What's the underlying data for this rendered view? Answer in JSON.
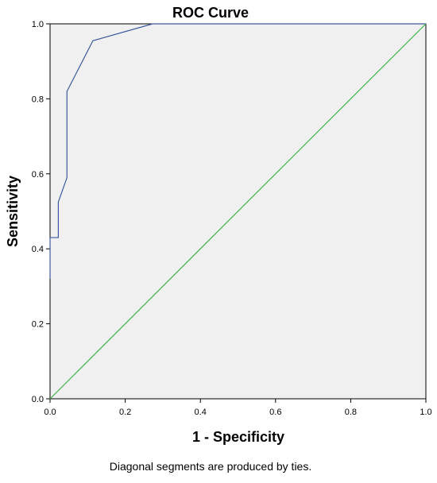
{
  "chart_data": {
    "type": "line",
    "title": "ROC Curve",
    "xlabel": "1 - Specificity",
    "ylabel": "Sensitivity",
    "footnote": "Diagonal segments are produced by ties.",
    "xlim": [
      0,
      1
    ],
    "ylim": [
      0,
      1
    ],
    "x_ticks": [
      "0.0",
      "0.2",
      "0.4",
      "0.6",
      "0.8",
      "1.0"
    ],
    "y_ticks": [
      "0.0",
      "0.2",
      "0.4",
      "0.6",
      "0.8",
      "1.0"
    ],
    "grid": false,
    "colors": {
      "plot_background": "#f0f0f0",
      "roc_curve": "#3d5a9e",
      "reference_line": "#3bb54a"
    },
    "series": [
      {
        "x": [
          0.0,
          0.0,
          0.022,
          0.022,
          0.022,
          0.045,
          0.045,
          0.114,
          0.273,
          1.0
        ],
        "y": [
          0.32,
          0.43,
          0.43,
          0.525,
          0.525,
          0.59,
          0.82,
          0.955,
          1.0,
          1.0
        ]
      },
      {
        "x": [
          0,
          1
        ],
        "y": [
          0,
          1
        ]
      }
    ]
  }
}
